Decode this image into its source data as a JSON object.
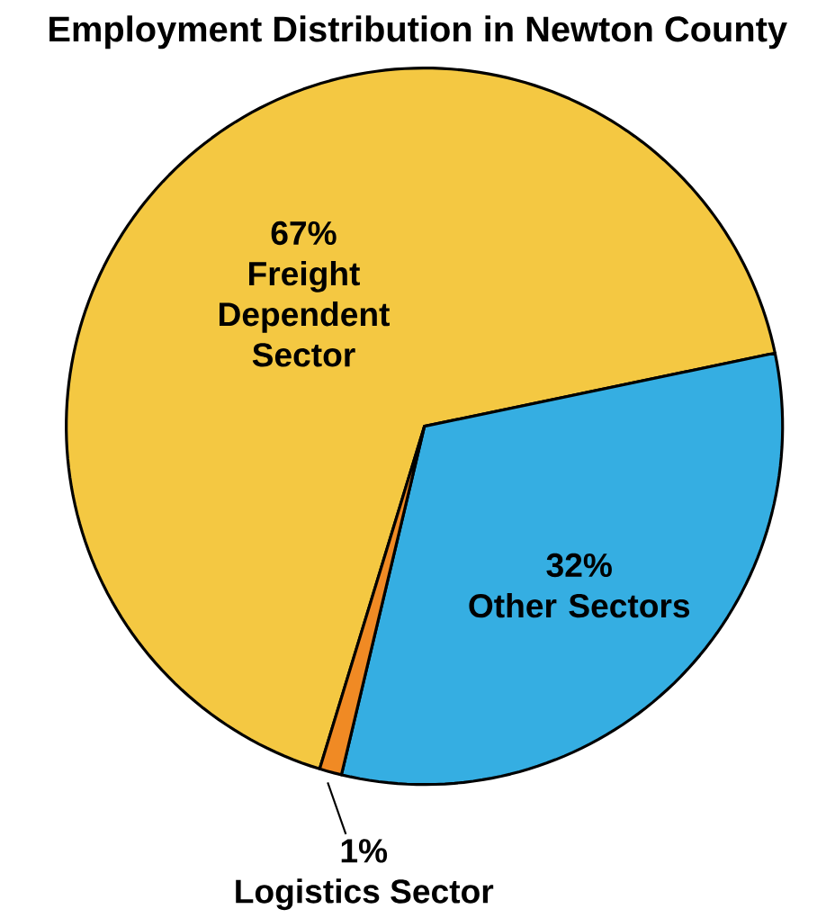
{
  "chart_data": {
    "type": "pie",
    "title": "Employment Distribution in Newton County",
    "categories": [
      "Freight Dependent Sector",
      "Other Sectors",
      "Logistics Sector"
    ],
    "values": [
      67,
      32,
      1
    ],
    "value_labels": [
      "67%",
      "32%",
      "1%"
    ],
    "colors": [
      "#f4c842",
      "#35aee2",
      "#f08a24"
    ]
  }
}
